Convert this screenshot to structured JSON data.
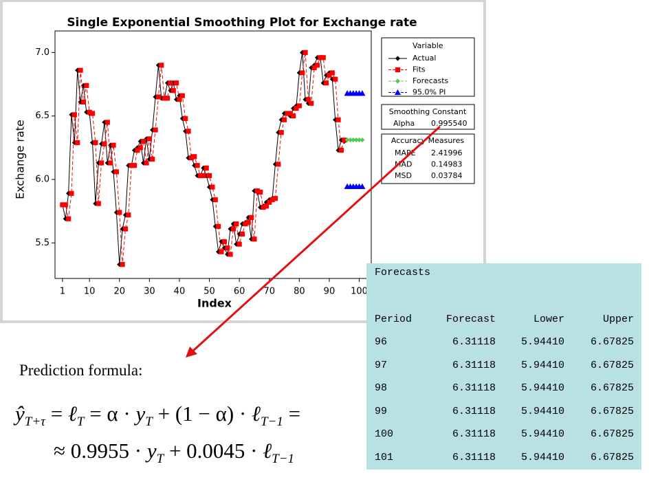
{
  "chart_data": {
    "type": "line",
    "title": "Single Exponential Smoothing Plot for Exchange rate",
    "x_label": "Index",
    "y_label": "Exchange rate",
    "x": [
      1,
      2,
      3,
      4,
      5,
      6,
      7,
      8,
      9,
      10,
      11,
      12,
      13,
      14,
      15,
      16,
      17,
      18,
      19,
      20,
      21,
      22,
      23,
      24,
      25,
      26,
      27,
      28,
      29,
      30,
      31,
      32,
      33,
      34,
      35,
      36,
      37,
      38,
      39,
      40,
      41,
      42,
      43,
      44,
      45,
      46,
      47,
      48,
      49,
      50,
      51,
      52,
      53,
      54,
      55,
      56,
      57,
      58,
      59,
      60,
      61,
      62,
      63,
      64,
      65,
      66,
      67,
      68,
      69,
      70,
      71,
      72,
      73,
      74,
      75,
      76,
      77,
      78,
      79,
      80,
      81,
      82,
      83,
      84,
      85,
      86,
      87,
      88,
      89,
      90,
      91,
      92,
      93,
      94,
      95
    ],
    "xlim": [
      -1.5,
      104
    ],
    "xticks": [
      1,
      10,
      20,
      30,
      40,
      50,
      60,
      70,
      80,
      90,
      100
    ],
    "ylim": [
      5.22,
      7.17
    ],
    "yticks": [
      {
        "value": 5.5,
        "label": "5.5"
      },
      {
        "value": 6,
        "label": "6.0"
      },
      6.5,
      {
        "value": 7,
        "label": "7.0"
      }
    ],
    "legend_title": "Variable",
    "series": [
      {
        "name": "Actual",
        "color": "#000000",
        "marker": "diamond",
        "dash": false,
        "values": [
          5.8,
          5.69,
          5.89,
          6.51,
          6.29,
          6.86,
          6.61,
          6.74,
          6.53,
          6.52,
          6.29,
          5.81,
          6.13,
          6.28,
          6.45,
          6.13,
          6.27,
          6.06,
          5.74,
          5.33,
          5.61,
          5.72,
          6.11,
          6.11,
          6.23,
          6.25,
          6.3,
          6.13,
          6.32,
          6.16,
          6.39,
          6.65,
          6.9,
          6.64,
          6.64,
          6.76,
          6.7,
          6.76,
          6.63,
          6.66,
          6.48,
          6.38,
          6.17,
          6.18,
          6.11,
          6.03,
          6.03,
          6.09,
          6.03,
          5.94,
          5.84,
          5.63,
          5.43,
          5.51,
          5.46,
          5.41,
          5.61,
          5.65,
          5.49,
          5.57,
          5.65,
          5.66,
          5.7,
          5.53,
          5.91,
          5.9,
          5.78,
          5.79,
          5.82,
          5.84,
          5.85,
          6.12,
          6.37,
          6.47,
          6.52,
          6.52,
          6.5,
          6.56,
          6.58,
          6.84,
          7.0,
          6.63,
          6.6,
          6.88,
          6.9,
          6.96,
          6.96,
          6.76,
          6.82,
          6.84,
          6.79,
          6.47,
          6.23,
          6.31,
          6.3
        ]
      },
      {
        "name": "Fits",
        "color": "#ff0000",
        "marker": "square",
        "dash": true,
        "values": [
          5.8,
          5.8,
          5.69,
          5.89,
          6.51,
          6.29,
          6.86,
          6.61,
          6.74,
          6.53,
          6.52,
          6.29,
          5.81,
          6.13,
          6.28,
          6.45,
          6.13,
          6.27,
          6.06,
          5.74,
          5.33,
          5.61,
          5.72,
          6.11,
          6.11,
          6.23,
          6.25,
          6.3,
          6.13,
          6.32,
          6.16,
          6.39,
          6.65,
          6.9,
          6.64,
          6.64,
          6.76,
          6.7,
          6.76,
          6.63,
          6.66,
          6.48,
          6.38,
          6.17,
          6.18,
          6.11,
          6.03,
          6.03,
          6.09,
          6.03,
          5.94,
          5.84,
          5.63,
          5.43,
          5.51,
          5.46,
          5.41,
          5.61,
          5.65,
          5.49,
          5.57,
          5.65,
          5.66,
          5.7,
          5.53,
          5.91,
          5.9,
          5.78,
          5.79,
          5.82,
          5.84,
          5.85,
          6.12,
          6.37,
          6.47,
          6.52,
          6.52,
          6.5,
          6.56,
          6.58,
          6.84,
          7.0,
          6.63,
          6.6,
          6.88,
          6.9,
          6.96,
          6.96,
          6.76,
          6.82,
          6.84,
          6.79,
          6.47,
          6.23,
          6.31
        ]
      },
      {
        "name": "Forecasts",
        "color": "#55cc55",
        "marker": "diamond",
        "dash": true,
        "x": [
          96,
          97,
          98,
          99,
          100,
          101
        ],
        "values": [
          6.31118,
          6.31118,
          6.31118,
          6.31118,
          6.31118,
          6.31118
        ]
      },
      {
        "name": "95.0% PI",
        "color": "#0000ff",
        "marker": "triangle",
        "dash": true,
        "x": [
          96,
          97,
          98,
          99,
          100,
          101
        ],
        "upper": [
          6.67825,
          6.67825,
          6.67825,
          6.67825,
          6.67825,
          6.67825
        ],
        "lower": [
          5.9441,
          5.9441,
          5.9441,
          5.9441,
          5.9441,
          5.9441
        ]
      }
    ],
    "smoothing": {
      "title": "Smoothing Constant",
      "name": "Alpha",
      "value": "0.995540"
    },
    "accuracy": {
      "title": "Accuracy Measures",
      "rows": [
        [
          "MAPE",
          "2.41996"
        ],
        [
          "MAD",
          "0.14983"
        ],
        [
          "MSD",
          "0.03784"
        ]
      ]
    }
  },
  "forecast_table": {
    "title": "Forecasts",
    "columns": [
      "Period",
      "Forecast",
      "Lower",
      "Upper"
    ],
    "rows": [
      [
        96,
        "6.31118",
        "5.94410",
        "6.67825"
      ],
      [
        97,
        "6.31118",
        "5.94410",
        "6.67825"
      ],
      [
        98,
        "6.31118",
        "5.94410",
        "6.67825"
      ],
      [
        99,
        "6.31118",
        "5.94410",
        "6.67825"
      ],
      [
        100,
        "6.31118",
        "5.94410",
        "6.67825"
      ],
      [
        101,
        "6.31118",
        "5.94410",
        "6.67825"
      ]
    ]
  },
  "formula": {
    "label": "Prediction formula:",
    "lines": [
      [
        {
          "t": "ŷ",
          "s": "T+τ"
        },
        {
          "t": " = "
        },
        {
          "t": "ℓ",
          "s": "T"
        },
        {
          "t": " = α · "
        },
        {
          "t": "y",
          "s": "T"
        },
        {
          "t": " + (1 − α) · "
        },
        {
          "t": "ℓ",
          "s": "T−1"
        },
        {
          "t": " ="
        }
      ],
      [
        {
          "t": "≈ 0.9955 · "
        },
        {
          "t": "y",
          "s": "T"
        },
        {
          "t": " + 0.0045 · "
        },
        {
          "t": "ℓ",
          "s": "T−1"
        }
      ]
    ]
  }
}
